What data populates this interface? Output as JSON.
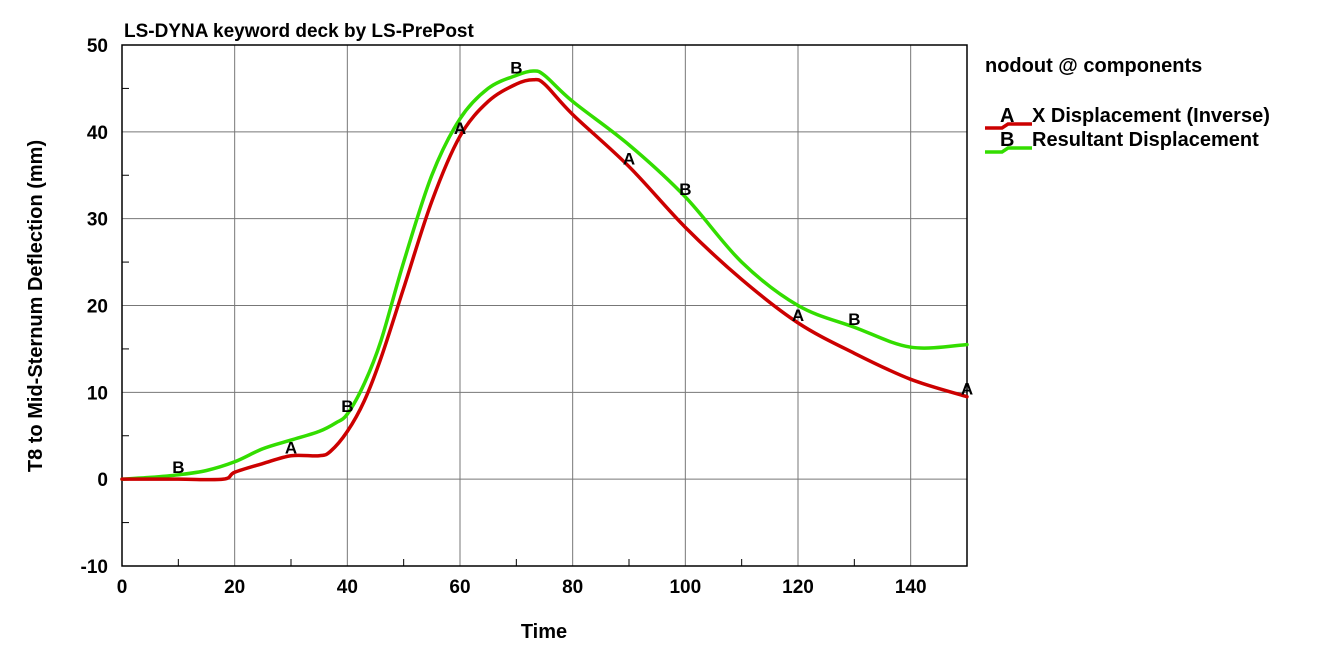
{
  "chart_data": {
    "type": "line",
    "title": "LS-DYNA keyword deck by LS-PrePost",
    "xlabel": "Time",
    "ylabel": "T8 to Mid-Sternum Deflection (mm)",
    "xlim": [
      0,
      150
    ],
    "ylim": [
      -10,
      50
    ],
    "x_ticks": [
      0,
      20,
      40,
      60,
      80,
      100,
      120,
      140
    ],
    "y_ticks": [
      -10,
      0,
      10,
      20,
      30,
      40,
      50
    ],
    "grid": true,
    "legend": {
      "title": "nodout @ components",
      "position": "right"
    },
    "series": [
      {
        "name": "X Displacement (Inverse)",
        "marker_label": "A",
        "color": "#cc0000",
        "x": [
          0,
          10,
          18,
          20,
          25,
          30,
          35,
          37,
          40,
          43,
          46,
          50,
          55,
          60,
          65,
          70,
          73,
          75,
          80,
          90,
          100,
          110,
          120,
          130,
          140,
          150
        ],
        "y": [
          0,
          0,
          0,
          0.8,
          1.8,
          2.7,
          2.7,
          3.2,
          5.5,
          9,
          14,
          22,
          32,
          39.5,
          43.5,
          45.5,
          46,
          45.5,
          42,
          36,
          29,
          23,
          18,
          14.5,
          11.5,
          9.5
        ],
        "marker_x": [
          30,
          60,
          90,
          120,
          150
        ]
      },
      {
        "name": "Resultant Displacement",
        "marker_label": "B",
        "color": "#33dd00",
        "x": [
          0,
          5,
          10,
          15,
          20,
          25,
          30,
          35,
          38,
          40,
          43,
          46,
          50,
          55,
          60,
          65,
          70,
          73,
          75,
          80,
          90,
          100,
          110,
          120,
          130,
          140,
          150
        ],
        "y": [
          0,
          0.2,
          0.5,
          1,
          2,
          3.5,
          4.5,
          5.5,
          6.5,
          7.5,
          11,
          16,
          25,
          35,
          41.5,
          45,
          46.5,
          47,
          46.5,
          43.5,
          38.5,
          32.5,
          25,
          20,
          17.5,
          15.2,
          15.5
        ],
        "marker_x": [
          10,
          40,
          70,
          100,
          130
        ]
      }
    ]
  }
}
